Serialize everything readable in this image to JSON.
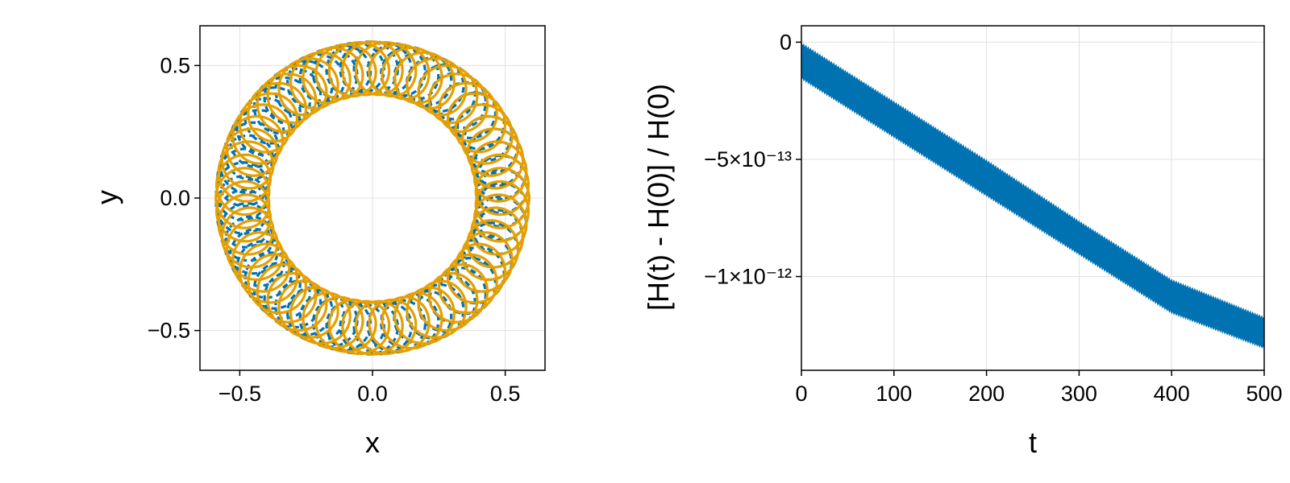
{
  "colors": {
    "series_blue": "#0072B2",
    "series_orange": "#E69F00",
    "grid": "#e0e0e0",
    "frame": "#000000"
  },
  "chart_data": [
    {
      "type": "line",
      "title": "",
      "xlabel": "x",
      "ylabel": "y",
      "xlim": [
        -0.65,
        0.65
      ],
      "ylim": [
        -0.65,
        0.65
      ],
      "xticks": [
        -0.5,
        0.0,
        0.5
      ],
      "yticks": [
        -0.5,
        0.0,
        0.5
      ],
      "xtick_labels": [
        "−0.5",
        "0.0",
        "0.5"
      ],
      "ytick_labels": [
        "−0.5",
        "0.0",
        "0.5"
      ],
      "grid": true,
      "legend": "none",
      "series": [
        {
          "color": "#0072B2",
          "style": "dashed",
          "shape": "annular rosette",
          "inner_radius": 0.4,
          "outer_radius": 0.59,
          "petals": 60
        },
        {
          "color": "#E69F00",
          "style": "solid",
          "shape": "annular rosette",
          "inner_radius": 0.39,
          "outer_radius": 0.59,
          "petals": 60
        }
      ]
    },
    {
      "type": "line",
      "title": "",
      "xlabel": "t",
      "ylabel": "[H(t) - H(0)] / H(0)",
      "xlim": [
        0,
        500
      ],
      "ylim": [
        -1.4e-12,
        7e-14
      ],
      "xticks": [
        0,
        100,
        200,
        300,
        400,
        500
      ],
      "xtick_labels": [
        "0",
        "100",
        "200",
        "300",
        "400",
        "500"
      ],
      "yticks": [
        0,
        -5e-13,
        -1e-12
      ],
      "ytick_labels": [
        "0",
        "−5×10⁻¹³",
        "−1×10⁻¹²"
      ],
      "grid": true,
      "legend": "none",
      "series": [
        {
          "color": "#0072B2",
          "style": "dense oscillating band",
          "x": [
            0,
            100,
            200,
            300,
            400,
            500
          ],
          "y_upper": [
            0.0,
            -2.5e-13,
            -5e-13,
            -7.6e-13,
            -1.01e-12,
            -1.17e-12
          ],
          "y_lower": [
            -1.6e-13,
            -4.1e-13,
            -6.6e-13,
            -9.1e-13,
            -1.16e-12,
            -1.31e-12
          ]
        }
      ]
    }
  ]
}
